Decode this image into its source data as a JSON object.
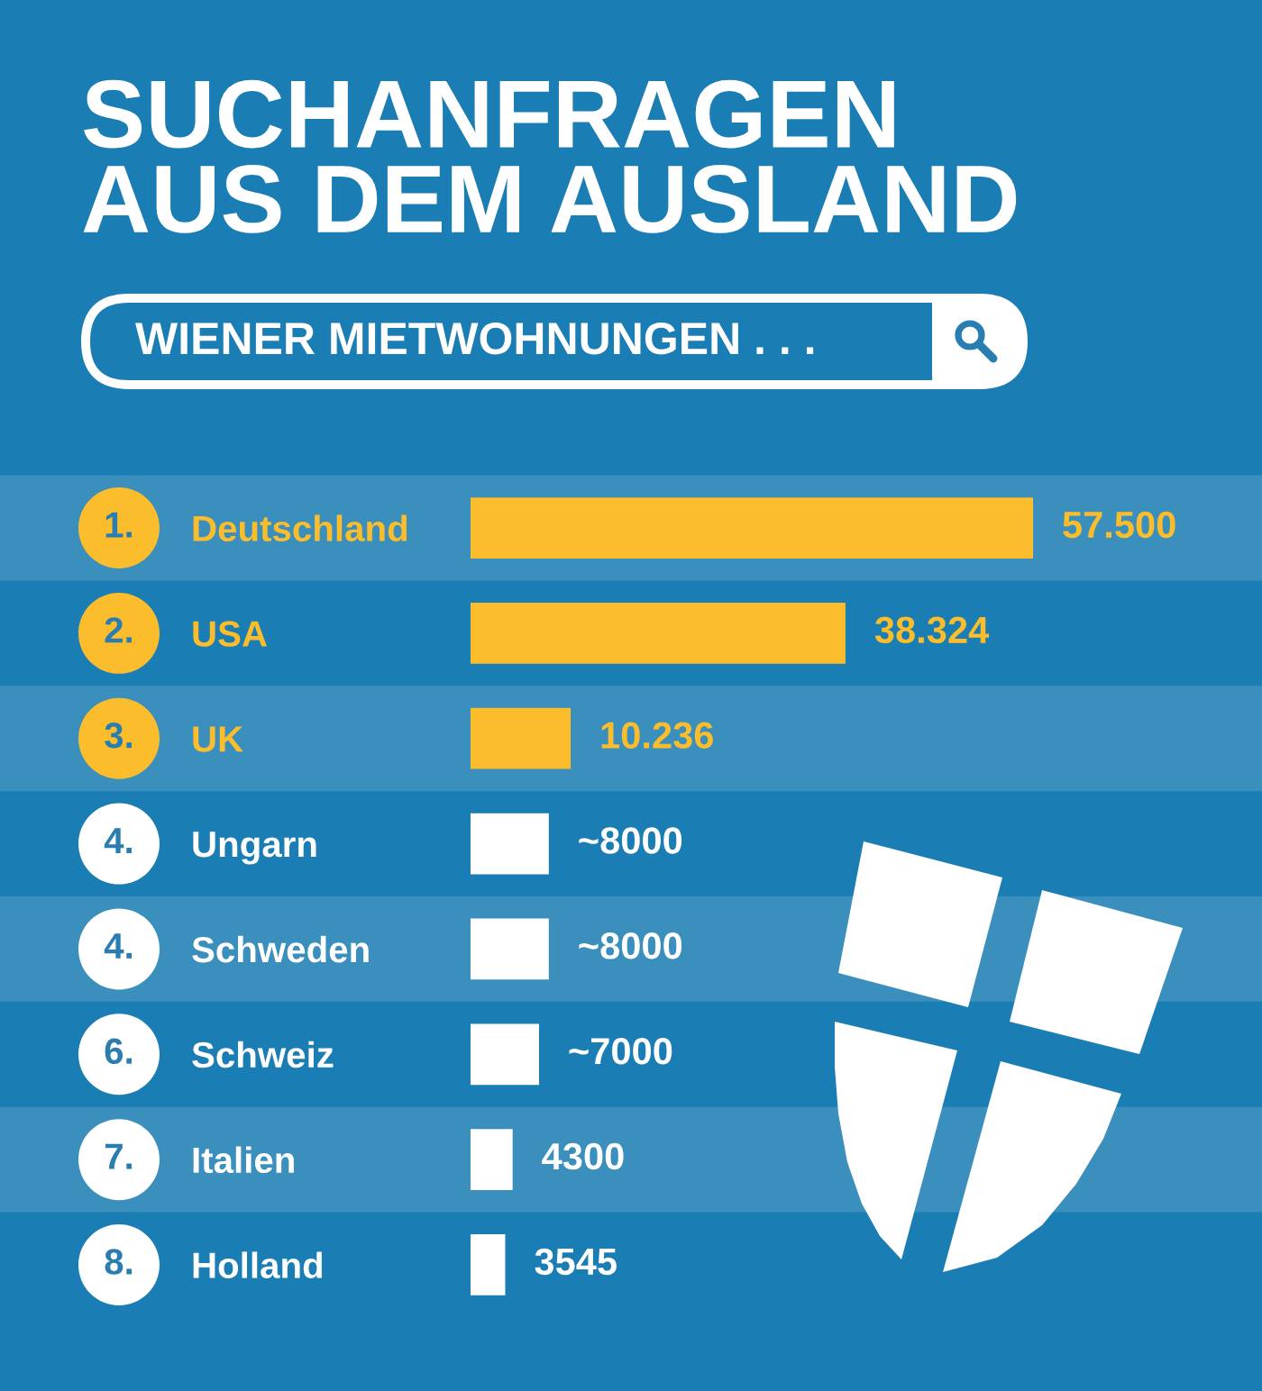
{
  "chart_data": {
    "type": "bar",
    "orientation": "horizontal",
    "title": "SUCHANFRAGEN\nAUS DEM AUSLAND",
    "subtitle": "WIENER MIETWOHNUNGEN . . .",
    "categories": [
      "Deutschland",
      "USA",
      "UK",
      "Ungarn",
      "Schweden",
      "Schweiz",
      "Italien",
      "Holland"
    ],
    "values": [
      57500,
      38324,
      10236,
      8000,
      8000,
      7000,
      4300,
      3545
    ],
    "value_labels": [
      "57.500",
      "38.324",
      "10.236",
      "~8000",
      "~8000",
      "~7000",
      "4300",
      "3545"
    ],
    "colors": [
      "#fbbd2c",
      "#fbbd2c",
      "#fbbd2c",
      "#ffffff",
      "#ffffff",
      "#ffffff",
      "#ffffff",
      "#ffffff"
    ],
    "annotations": [
      "1.",
      "2.",
      "3.",
      "4.",
      "4.",
      "6.",
      "7.",
      "8."
    ]
  }
}
